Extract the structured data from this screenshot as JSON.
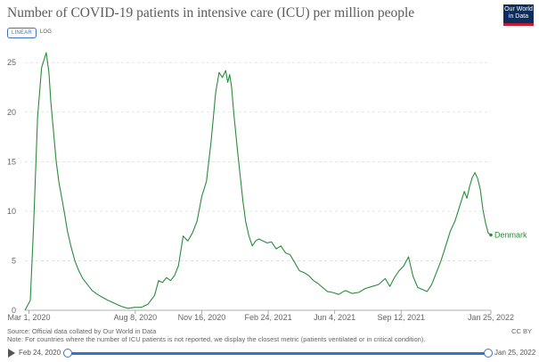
{
  "header": {
    "title": "Number of COVID-19 patients in intensive care (ICU) per million people",
    "logo_line1": "Our World",
    "logo_line2": "in Data"
  },
  "controls": {
    "linear_label": "LINEAR",
    "log_label": "LOG"
  },
  "footer": {
    "source": "Source: Official data collated by Our World in Data",
    "note": "Note: For countries where the number of ICU patients is not reported, we display the closest metric (patients ventilated or in critical condition).",
    "license": "CC BY"
  },
  "timeline": {
    "start_label": "Feb 24, 2020",
    "end_label": "Jan 25, 2022"
  },
  "colors": {
    "series": "#2a8c3c",
    "grid": "#dddddd",
    "axis_text": "#666666",
    "accent": "#3b73c4"
  },
  "chart_data": {
    "type": "line",
    "title": "Number of COVID-19 patients in intensive care (ICU) per million people",
    "xlabel": "",
    "ylabel": "",
    "xlim": [
      "2020-02-24",
      "2022-01-25"
    ],
    "ylim": [
      0,
      27
    ],
    "yticks": [
      0,
      5,
      10,
      15,
      20,
      25
    ],
    "xticks": [
      "Mar 1, 2020",
      "Aug 8, 2020",
      "Nov 16, 2020",
      "Feb 24, 2021",
      "Jun 4, 2021",
      "Sep 12, 2021",
      "Jan 25, 2022"
    ],
    "xtick_dates": [
      "2020-03-01",
      "2020-08-08",
      "2020-11-16",
      "2021-02-24",
      "2021-06-04",
      "2021-09-12",
      "2022-01-25"
    ],
    "grid": "horizontal",
    "series": [
      {
        "name": "Denmark",
        "x": [
          "2020-02-24",
          "2020-03-03",
          "2020-03-08",
          "2020-03-14",
          "2020-03-20",
          "2020-03-27",
          "2020-03-31",
          "2020-04-03",
          "2020-04-07",
          "2020-04-11",
          "2020-04-15",
          "2020-04-19",
          "2020-04-23",
          "2020-04-28",
          "2020-05-03",
          "2020-05-09",
          "2020-05-15",
          "2020-05-21",
          "2020-05-28",
          "2020-06-04",
          "2020-06-12",
          "2020-06-20",
          "2020-06-28",
          "2020-07-08",
          "2020-07-18",
          "2020-07-28",
          "2020-08-07",
          "2020-08-17",
          "2020-08-27",
          "2020-09-06",
          "2020-09-12",
          "2020-09-18",
          "2020-09-24",
          "2020-09-30",
          "2020-10-06",
          "2020-10-12",
          "2020-10-19",
          "2020-10-26",
          "2020-11-02",
          "2020-11-09",
          "2020-11-16",
          "2020-11-23",
          "2020-11-30",
          "2020-12-07",
          "2020-12-12",
          "2020-12-17",
          "2020-12-22",
          "2020-12-25",
          "2020-12-28",
          "2020-12-31",
          "2021-01-03",
          "2021-01-06",
          "2021-01-09",
          "2021-01-13",
          "2021-01-17",
          "2021-01-21",
          "2021-01-26",
          "2021-01-31",
          "2021-02-05",
          "2021-02-10",
          "2021-02-16",
          "2021-02-22",
          "2021-03-01",
          "2021-03-08",
          "2021-03-15",
          "2021-03-22",
          "2021-03-29",
          "2021-04-05",
          "2021-04-12",
          "2021-04-19",
          "2021-04-26",
          "2021-05-03",
          "2021-05-10",
          "2021-05-17",
          "2021-05-24",
          "2021-06-01",
          "2021-06-10",
          "2021-06-20",
          "2021-06-30",
          "2021-07-10",
          "2021-07-20",
          "2021-07-30",
          "2021-08-09",
          "2021-08-19",
          "2021-08-26",
          "2021-09-02",
          "2021-09-09",
          "2021-09-16",
          "2021-09-23",
          "2021-09-30",
          "2021-10-07",
          "2021-10-14",
          "2021-10-21",
          "2021-10-28",
          "2021-11-04",
          "2021-11-11",
          "2021-11-18",
          "2021-11-25",
          "2021-12-02",
          "2021-12-09",
          "2021-12-16",
          "2021-12-20",
          "2021-12-24",
          "2021-12-28",
          "2022-01-01",
          "2022-01-05",
          "2022-01-09",
          "2022-01-13",
          "2022-01-17",
          "2022-01-21",
          "2022-01-25"
        ],
        "y": [
          0,
          1.0,
          8.5,
          19.5,
          24.5,
          26.0,
          24.0,
          21.0,
          18.0,
          15.0,
          13.0,
          11.5,
          10.0,
          8.0,
          6.5,
          5.0,
          4.0,
          3.2,
          2.6,
          2.0,
          1.6,
          1.3,
          1.0,
          0.7,
          0.4,
          0.2,
          0.3,
          0.3,
          0.6,
          1.5,
          3.0,
          2.8,
          3.3,
          3.0,
          3.5,
          4.5,
          7.5,
          7.0,
          7.8,
          9.0,
          11.5,
          13.0,
          17.0,
          22.0,
          24.0,
          23.5,
          24.2,
          23.0,
          23.8,
          22.5,
          20.0,
          18.0,
          16.0,
          13.5,
          11.0,
          9.0,
          7.5,
          6.5,
          7.0,
          7.2,
          7.0,
          6.8,
          6.9,
          6.2,
          6.5,
          5.8,
          5.6,
          4.8,
          4.0,
          3.8,
          3.5,
          3.0,
          2.7,
          2.3,
          1.9,
          1.8,
          1.6,
          2.0,
          1.7,
          1.8,
          2.2,
          2.4,
          2.6,
          3.2,
          2.4,
          3.3,
          4.0,
          4.5,
          5.4,
          3.4,
          2.3,
          2.1,
          1.9,
          2.6,
          3.8,
          5.0,
          6.5,
          8.0,
          9.0,
          10.5,
          12.0,
          11.3,
          12.5,
          13.4,
          13.9,
          13.3,
          12.2,
          10.2,
          8.8,
          7.8,
          7.6
        ]
      }
    ]
  }
}
